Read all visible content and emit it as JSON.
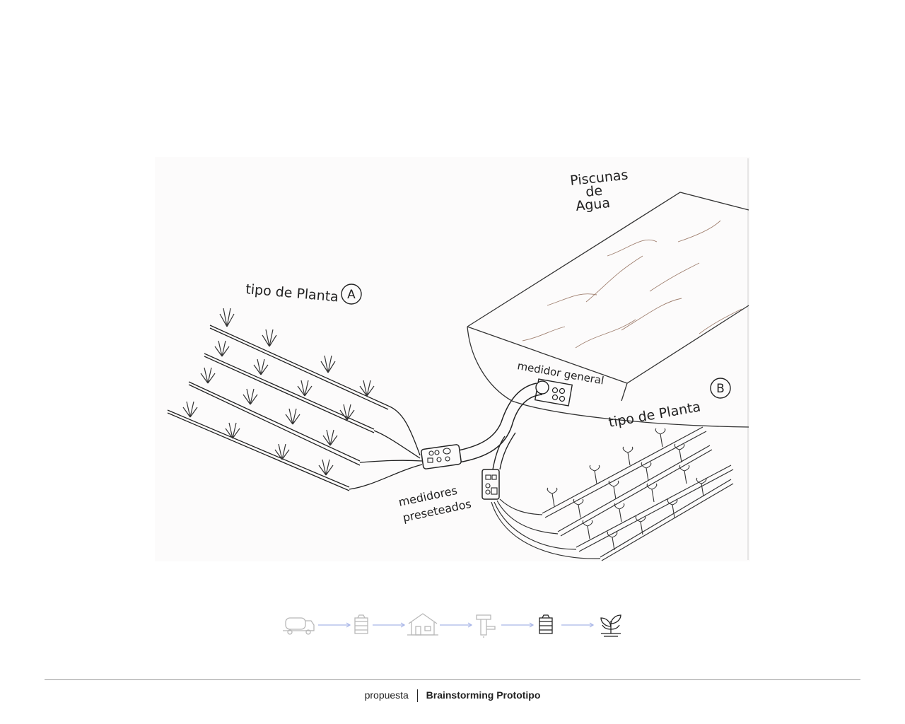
{
  "sketch": {
    "pool_label_lines": [
      "Piscunas",
      "de",
      "Agua"
    ],
    "plant_a_label": "tipo de Planta",
    "plant_a_marker": "A",
    "plant_b_label": "tipo de Planta",
    "plant_b_marker": "B",
    "general_meter_label": "medidor general",
    "preset_meters_label_lines": [
      "medidores",
      "preseteados"
    ]
  },
  "process_flow": {
    "steps": [
      "truck-icon",
      "water-tank-icon",
      "house-icon",
      "water-filter-icon",
      "water-tank-icon",
      "plant-icon"
    ],
    "inactive_color": "#b8b8b8",
    "active_color": "#222222",
    "arrow_color": "#a9b6e8"
  },
  "footer": {
    "section": "propuesta",
    "title": "Brainstorming Prototipo"
  }
}
